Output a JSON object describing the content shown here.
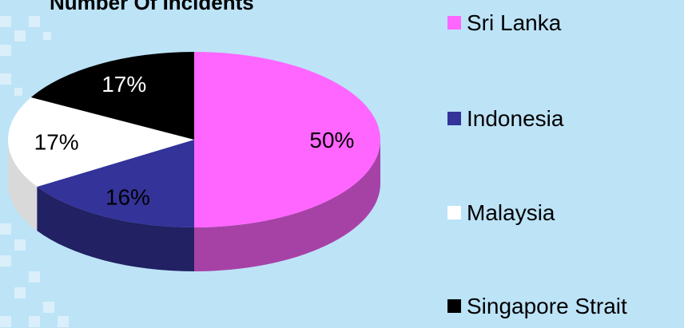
{
  "chart_data": {
    "type": "pie",
    "title": "Number Of Incidents",
    "categories": [
      "Sri Lanka",
      "Indonesia",
      "Malaysia",
      "Singapore Strait"
    ],
    "values": [
      50,
      16,
      17,
      17
    ],
    "value_labels": [
      "50%",
      "16%",
      "17%",
      "17%"
    ],
    "colors": [
      "#ff66ff",
      "#333399",
      "#ffffff",
      "#000000"
    ]
  }
}
